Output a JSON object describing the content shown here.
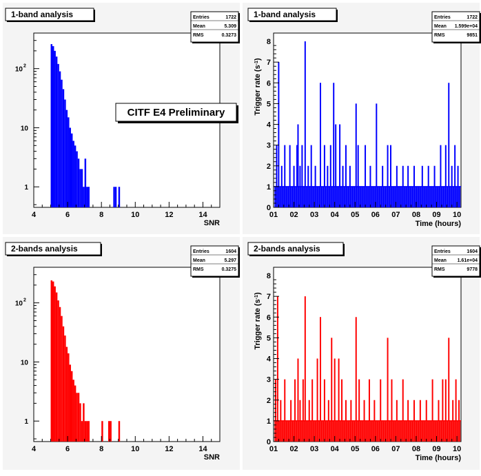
{
  "preliminary_label": "CITF E4 Preliminary",
  "chart_data": [
    {
      "type": "bar",
      "title": "1-band analysis",
      "xlabel": "SNR",
      "ylabel": "",
      "color": "#0000ff",
      "yscale": "log",
      "xlim": [
        4,
        15
      ],
      "ylim": [
        0.45,
        400
      ],
      "xticks": [
        "4",
        "6",
        "8",
        "10",
        "12",
        "14"
      ],
      "yticks": [
        "1",
        "10",
        "10^2"
      ],
      "stats": {
        "Entries": "1722",
        "Mean": "5.309",
        "RMS": "0.3273"
      },
      "bin_width": 0.1,
      "x": [
        5.0,
        5.1,
        5.2,
        5.3,
        5.4,
        5.5,
        5.6,
        5.7,
        5.8,
        5.9,
        6.0,
        6.1,
        6.2,
        6.3,
        6.4,
        6.5,
        6.6,
        6.7,
        6.8,
        6.9,
        7.0,
        7.1,
        7.2,
        8.7,
        8.8,
        9.0
      ],
      "values": [
        260,
        240,
        200,
        160,
        120,
        90,
        65,
        45,
        30,
        20,
        15,
        10,
        8,
        6,
        5,
        4,
        3,
        2,
        2,
        1,
        3,
        1,
        1,
        1,
        1,
        1
      ]
    },
    {
      "type": "line",
      "title": "1-band analysis",
      "xlabel": "Time (hours)",
      "ylabel": "Trigger rate (s-1)",
      "color": "#0000ff",
      "xlim": [
        1,
        10.2
      ],
      "ylim": [
        0,
        8.4
      ],
      "xticks": [
        "01",
        "02",
        "03",
        "04",
        "05",
        "06",
        "07",
        "08",
        "09",
        "10"
      ],
      "yticks": [
        "0",
        "1",
        "2",
        "3",
        "4",
        "5",
        "6",
        "7",
        "8"
      ],
      "stats": {
        "Entries": "1722",
        "Mean": "1.599e+04",
        "RMS": "9851"
      },
      "spikes": [
        [
          1.15,
          3
        ],
        [
          1.25,
          7
        ],
        [
          1.4,
          2
        ],
        [
          1.55,
          3
        ],
        [
          1.8,
          3
        ],
        [
          2.0,
          2
        ],
        [
          2.15,
          3
        ],
        [
          2.2,
          4
        ],
        [
          2.3,
          2
        ],
        [
          2.4,
          3
        ],
        [
          2.55,
          8
        ],
        [
          2.7,
          2
        ],
        [
          2.85,
          3
        ],
        [
          3.05,
          2
        ],
        [
          3.3,
          6
        ],
        [
          3.5,
          3
        ],
        [
          3.65,
          2
        ],
        [
          3.8,
          3
        ],
        [
          3.95,
          6
        ],
        [
          4.05,
          4
        ],
        [
          4.25,
          4
        ],
        [
          4.4,
          2
        ],
        [
          4.55,
          3
        ],
        [
          4.75,
          2
        ],
        [
          5.05,
          5
        ],
        [
          5.15,
          3
        ],
        [
          5.5,
          3
        ],
        [
          5.75,
          2
        ],
        [
          6.05,
          5
        ],
        [
          6.35,
          2
        ],
        [
          6.6,
          3
        ],
        [
          6.75,
          3
        ],
        [
          7.05,
          2
        ],
        [
          7.35,
          2
        ],
        [
          7.6,
          2
        ],
        [
          7.9,
          2
        ],
        [
          8.3,
          2
        ],
        [
          8.6,
          2
        ],
        [
          8.9,
          2
        ],
        [
          9.2,
          3
        ],
        [
          9.45,
          3
        ],
        [
          9.6,
          6
        ],
        [
          9.75,
          2
        ],
        [
          9.9,
          3
        ],
        [
          10.05,
          2
        ]
      ],
      "baseline_max": 1
    },
    {
      "type": "bar",
      "title": "2-bands analysis",
      "xlabel": "SNR",
      "ylabel": "",
      "color": "#ff0000",
      "yscale": "log",
      "xlim": [
        4,
        15
      ],
      "ylim": [
        0.45,
        400
      ],
      "xticks": [
        "4",
        "6",
        "8",
        "10",
        "12",
        "14"
      ],
      "yticks": [
        "1",
        "10",
        "10^2"
      ],
      "stats": {
        "Entries": "1604",
        "Mean": "5.297",
        "RMS": "0.3275"
      },
      "bin_width": 0.1,
      "x": [
        5.0,
        5.1,
        5.2,
        5.3,
        5.4,
        5.5,
        5.6,
        5.7,
        5.8,
        5.9,
        6.0,
        6.1,
        6.2,
        6.3,
        6.4,
        6.5,
        6.6,
        6.7,
        6.8,
        6.9,
        7.0,
        7.1,
        7.2,
        8.0,
        8.4,
        8.5,
        9.0
      ],
      "values": [
        240,
        230,
        190,
        150,
        110,
        85,
        60,
        40,
        28,
        18,
        14,
        9,
        7,
        5,
        4,
        3,
        3,
        2,
        1,
        2,
        1,
        1,
        1,
        1,
        1,
        1,
        1
      ]
    },
    {
      "type": "line",
      "title": "2-bands analysis",
      "xlabel": "Time (hours)",
      "ylabel": "Trigger rate (s-1)",
      "color": "#ff0000",
      "xlim": [
        1,
        10.2
      ],
      "ylim": [
        0,
        8.4
      ],
      "xticks": [
        "01",
        "02",
        "03",
        "04",
        "05",
        "06",
        "07",
        "08",
        "09",
        "10"
      ],
      "yticks": [
        "0",
        "1",
        "2",
        "3",
        "4",
        "5",
        "6",
        "7",
        "8"
      ],
      "stats": {
        "Entries": "1604",
        "Mean": "1.61e+04",
        "RMS": "9778"
      },
      "spikes": [
        [
          1.1,
          3
        ],
        [
          1.2,
          7
        ],
        [
          1.35,
          2
        ],
        [
          1.55,
          3
        ],
        [
          1.85,
          2
        ],
        [
          2.05,
          3
        ],
        [
          2.2,
          4
        ],
        [
          2.3,
          2
        ],
        [
          2.45,
          3
        ],
        [
          2.55,
          7
        ],
        [
          2.75,
          2
        ],
        [
          2.9,
          3
        ],
        [
          3.15,
          4
        ],
        [
          3.3,
          6
        ],
        [
          3.5,
          3
        ],
        [
          3.7,
          2
        ],
        [
          3.85,
          5
        ],
        [
          4.0,
          4
        ],
        [
          4.2,
          4
        ],
        [
          4.35,
          3
        ],
        [
          4.55,
          2
        ],
        [
          4.8,
          2
        ],
        [
          5.05,
          6
        ],
        [
          5.2,
          3
        ],
        [
          5.45,
          2
        ],
        [
          5.7,
          3
        ],
        [
          5.95,
          2
        ],
        [
          6.25,
          3
        ],
        [
          6.6,
          5
        ],
        [
          6.8,
          3
        ],
        [
          7.05,
          2
        ],
        [
          7.35,
          3
        ],
        [
          7.6,
          2
        ],
        [
          7.9,
          2
        ],
        [
          8.2,
          2
        ],
        [
          8.5,
          2
        ],
        [
          8.8,
          3
        ],
        [
          9.1,
          2
        ],
        [
          9.3,
          3
        ],
        [
          9.45,
          3
        ],
        [
          9.6,
          5
        ],
        [
          9.8,
          2
        ],
        [
          9.95,
          3
        ],
        [
          10.1,
          2
        ]
      ],
      "baseline_max": 1
    }
  ]
}
